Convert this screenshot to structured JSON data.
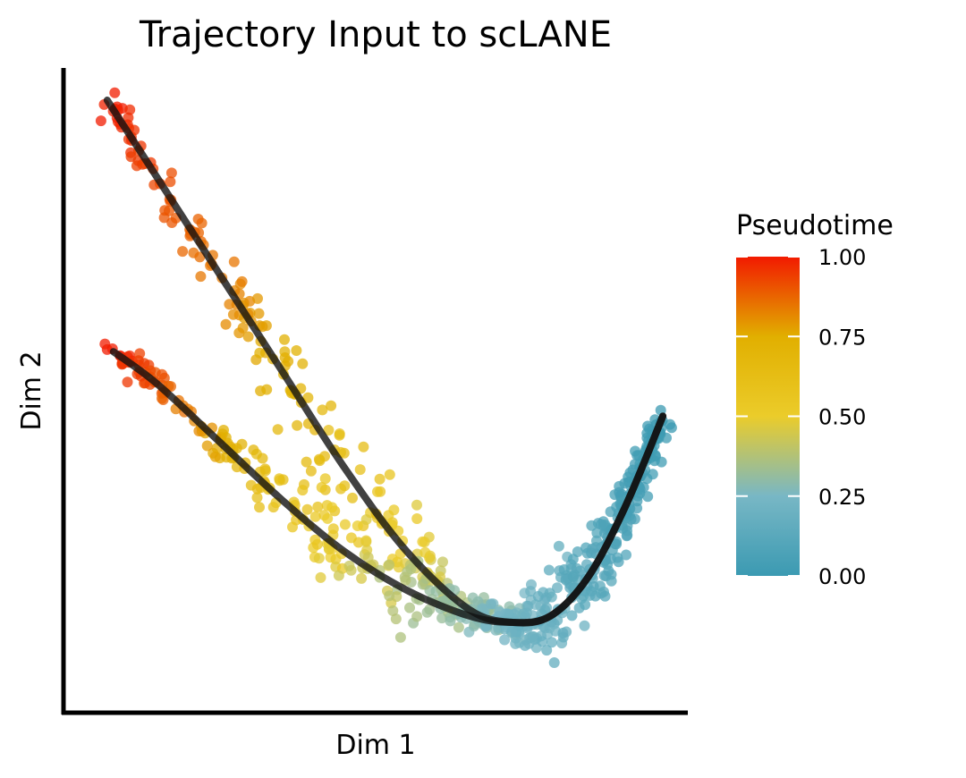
{
  "chart_data": {
    "type": "scatter",
    "title": "Trajectory Input to scLANE",
    "xlabel": "Dim 1",
    "ylabel": "Dim 2",
    "x_ticks_shown": false,
    "y_ticks_shown": false,
    "grid": false,
    "color_scale": {
      "title": "Pseudotime",
      "range": [
        0,
        1
      ],
      "ticks": [
        "0.00",
        "0.25",
        "0.50",
        "0.75",
        "1.00"
      ],
      "tick_values": [
        0,
        0.25,
        0.5,
        0.75,
        1.0
      ],
      "stops": [
        {
          "value": 0.0,
          "color": "#3b9ab2"
        },
        {
          "value": 0.25,
          "color": "#78b7c5"
        },
        {
          "value": 0.5,
          "color": "#ebcc2a"
        },
        {
          "value": 0.75,
          "color": "#e1af00"
        },
        {
          "value": 1.0,
          "color": "#f21a00"
        }
      ],
      "placement": "right"
    },
    "lineages": [
      {
        "curve": [
          [
            0.07,
            0.95
          ],
          [
            0.15,
            0.83
          ],
          [
            0.25,
            0.68
          ],
          [
            0.35,
            0.53
          ],
          [
            0.45,
            0.38
          ],
          [
            0.55,
            0.25
          ],
          [
            0.65,
            0.16
          ],
          [
            0.72,
            0.14
          ],
          [
            0.78,
            0.15
          ],
          [
            0.84,
            0.21
          ],
          [
            0.9,
            0.32
          ],
          [
            0.96,
            0.46
          ]
        ],
        "pseudotime": [
          1.0,
          0.92,
          0.84,
          0.74,
          0.62,
          0.5,
          0.36,
          0.27,
          0.2,
          0.12,
          0.05,
          0.0
        ]
      },
      {
        "curve": [
          [
            0.08,
            0.56
          ],
          [
            0.15,
            0.51
          ],
          [
            0.25,
            0.42
          ],
          [
            0.35,
            0.33
          ],
          [
            0.45,
            0.25
          ],
          [
            0.55,
            0.19
          ],
          [
            0.65,
            0.15
          ],
          [
            0.72,
            0.14
          ],
          [
            0.78,
            0.15
          ],
          [
            0.84,
            0.21
          ],
          [
            0.9,
            0.32
          ],
          [
            0.96,
            0.46
          ]
        ],
        "pseudotime": [
          1.0,
          0.9,
          0.76,
          0.6,
          0.48,
          0.36,
          0.28,
          0.22,
          0.17,
          0.11,
          0.05,
          0.0
        ]
      }
    ],
    "principal_curve_color": "#111111"
  }
}
